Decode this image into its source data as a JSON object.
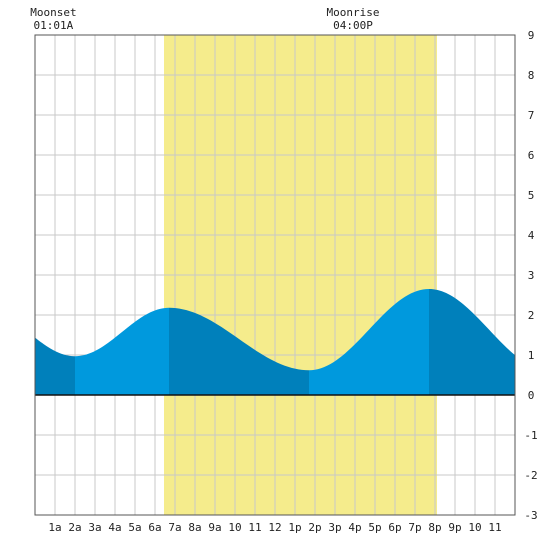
{
  "chart_data": {
    "type": "area",
    "title": "",
    "xlabel": "",
    "ylabel": "",
    "xlim": [
      0,
      24
    ],
    "ylim": [
      -3,
      9
    ],
    "y_ticks": [
      "-3",
      "-2",
      "-1",
      "0",
      "1",
      "2",
      "3",
      "4",
      "5",
      "6",
      "7",
      "8",
      "9"
    ],
    "x_tick_labels": [
      "1a",
      "2a",
      "3a",
      "4a",
      "5a",
      "6a",
      "7a",
      "8a",
      "9a",
      "10",
      "11",
      "12",
      "1p",
      "2p",
      "3p",
      "4p",
      "5p",
      "6p",
      "7p",
      "8p",
      "9p",
      "10",
      "11"
    ],
    "grid": true,
    "daylight": {
      "start_hour": 6.45,
      "end_hour": 20.1,
      "color": "#f5ec8c"
    },
    "tide_extremes": [
      {
        "hour": 2.0,
        "height": 0.97,
        "kind": "low"
      },
      {
        "hour": 6.7,
        "height": 2.18,
        "kind": "high"
      },
      {
        "hour": 13.7,
        "height": 0.62,
        "kind": "low"
      },
      {
        "hour": 19.7,
        "height": 2.65,
        "kind": "high"
      }
    ],
    "series": [
      {
        "x": [
          0,
          1,
          2,
          3,
          4,
          5,
          6,
          6.7,
          7,
          8,
          9,
          10,
          11,
          12,
          13,
          13.7,
          14,
          15,
          16,
          17,
          18,
          19,
          19.7,
          20,
          21,
          22,
          23,
          24
        ],
        "values": [
          1.22,
          1.05,
          0.97,
          1.14,
          1.52,
          1.9,
          2.14,
          2.18,
          2.17,
          2.04,
          1.78,
          1.45,
          1.11,
          0.82,
          0.65,
          0.62,
          0.64,
          0.85,
          1.25,
          1.74,
          2.21,
          2.54,
          2.65,
          2.64,
          2.49,
          2.19,
          1.86,
          1.53
        ]
      }
    ],
    "colors": {
      "rising": "#0099dd",
      "falling": "#0080bb",
      "grid": "#c8c8c8"
    },
    "moon_events": [
      {
        "title": "Moonset",
        "time": "01:01A",
        "hour": 1.02
      },
      {
        "title": "Moonrise",
        "time": "04:00P",
        "hour": 16.0
      }
    ]
  }
}
